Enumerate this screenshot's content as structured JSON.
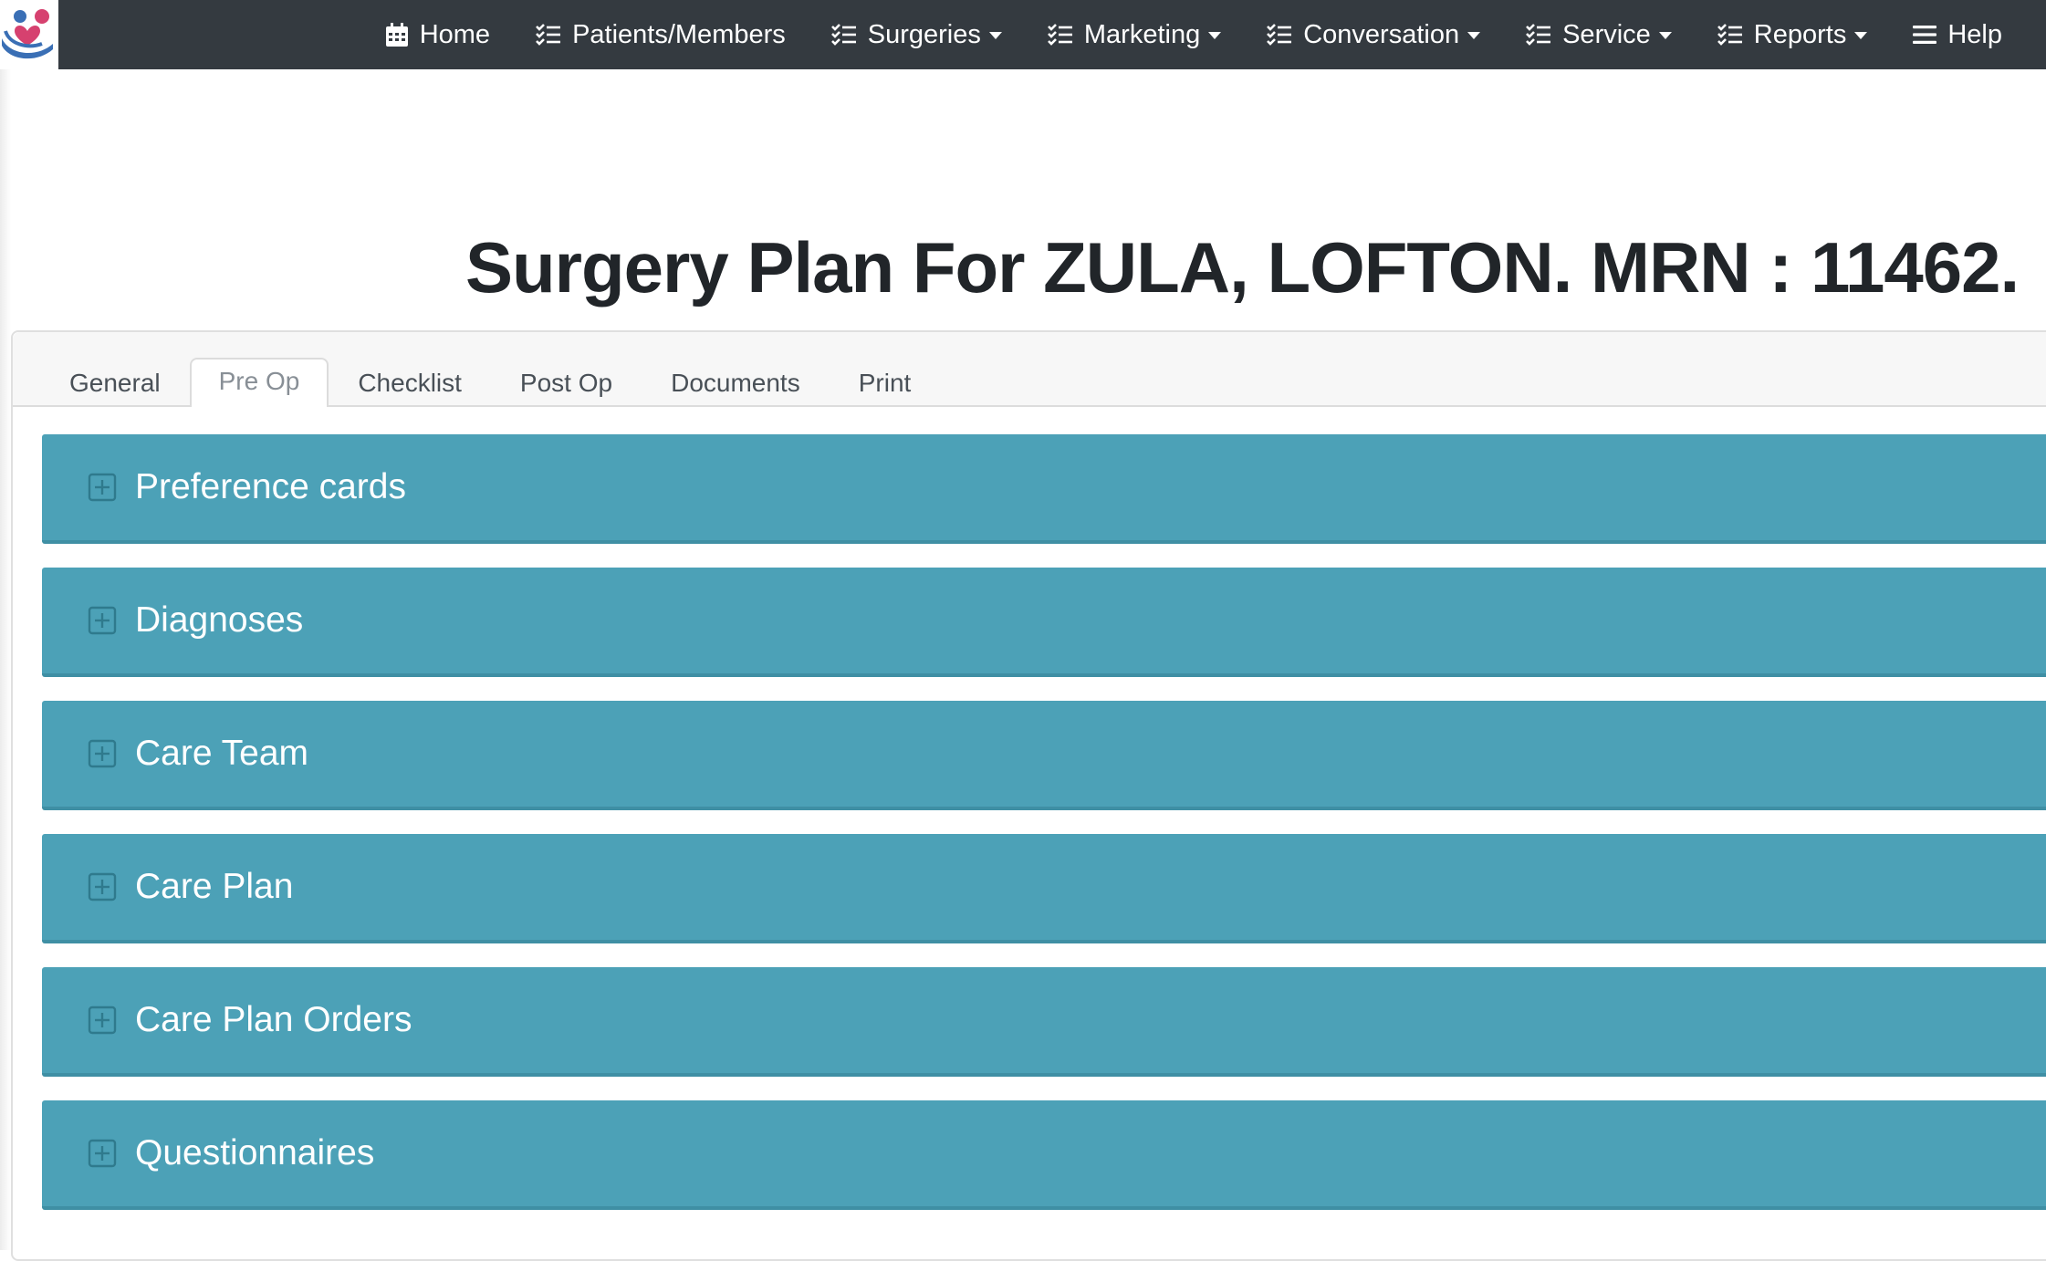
{
  "navbar": {
    "items": [
      {
        "label": "Home",
        "icon": "calendar-icon",
        "dropdown": false
      },
      {
        "label": "Patients/Members",
        "icon": "list-check-icon",
        "dropdown": false
      },
      {
        "label": "Surgeries",
        "icon": "list-check-icon",
        "dropdown": true
      },
      {
        "label": "Marketing",
        "icon": "list-check-icon",
        "dropdown": true
      },
      {
        "label": "Conversation",
        "icon": "list-check-icon",
        "dropdown": true
      },
      {
        "label": "Service",
        "icon": "list-check-icon",
        "dropdown": true
      },
      {
        "label": "Reports",
        "icon": "list-check-icon",
        "dropdown": true
      },
      {
        "label": "Help",
        "icon": "menu-icon",
        "dropdown": false
      }
    ]
  },
  "page": {
    "title": "Surgery Plan For ZULA, LOFTON. MRN : 11462."
  },
  "tabs": [
    {
      "label": "General",
      "active": false
    },
    {
      "label": "Pre Op",
      "active": true
    },
    {
      "label": "Checklist",
      "active": false
    },
    {
      "label": "Post Op",
      "active": false
    },
    {
      "label": "Documents",
      "active": false
    },
    {
      "label": "Print",
      "active": false
    }
  ],
  "accordion": [
    {
      "label": "Preference cards",
      "icon": "expand-plus-icon"
    },
    {
      "label": "Diagnoses",
      "icon": "expand-plus-icon"
    },
    {
      "label": "Care Team",
      "icon": "expand-plus-icon"
    },
    {
      "label": "Care Plan",
      "icon": "expand-plus-icon"
    },
    {
      "label": "Care Plan Orders",
      "icon": "expand-plus-icon"
    },
    {
      "label": "Questionnaires",
      "icon": "expand-plus-icon"
    }
  ],
  "colors": {
    "navbar_bg": "#343a40",
    "accordion_bg": "#4ca1b7",
    "accordion_border": "#3f8fa4",
    "title_text": "#212529"
  }
}
